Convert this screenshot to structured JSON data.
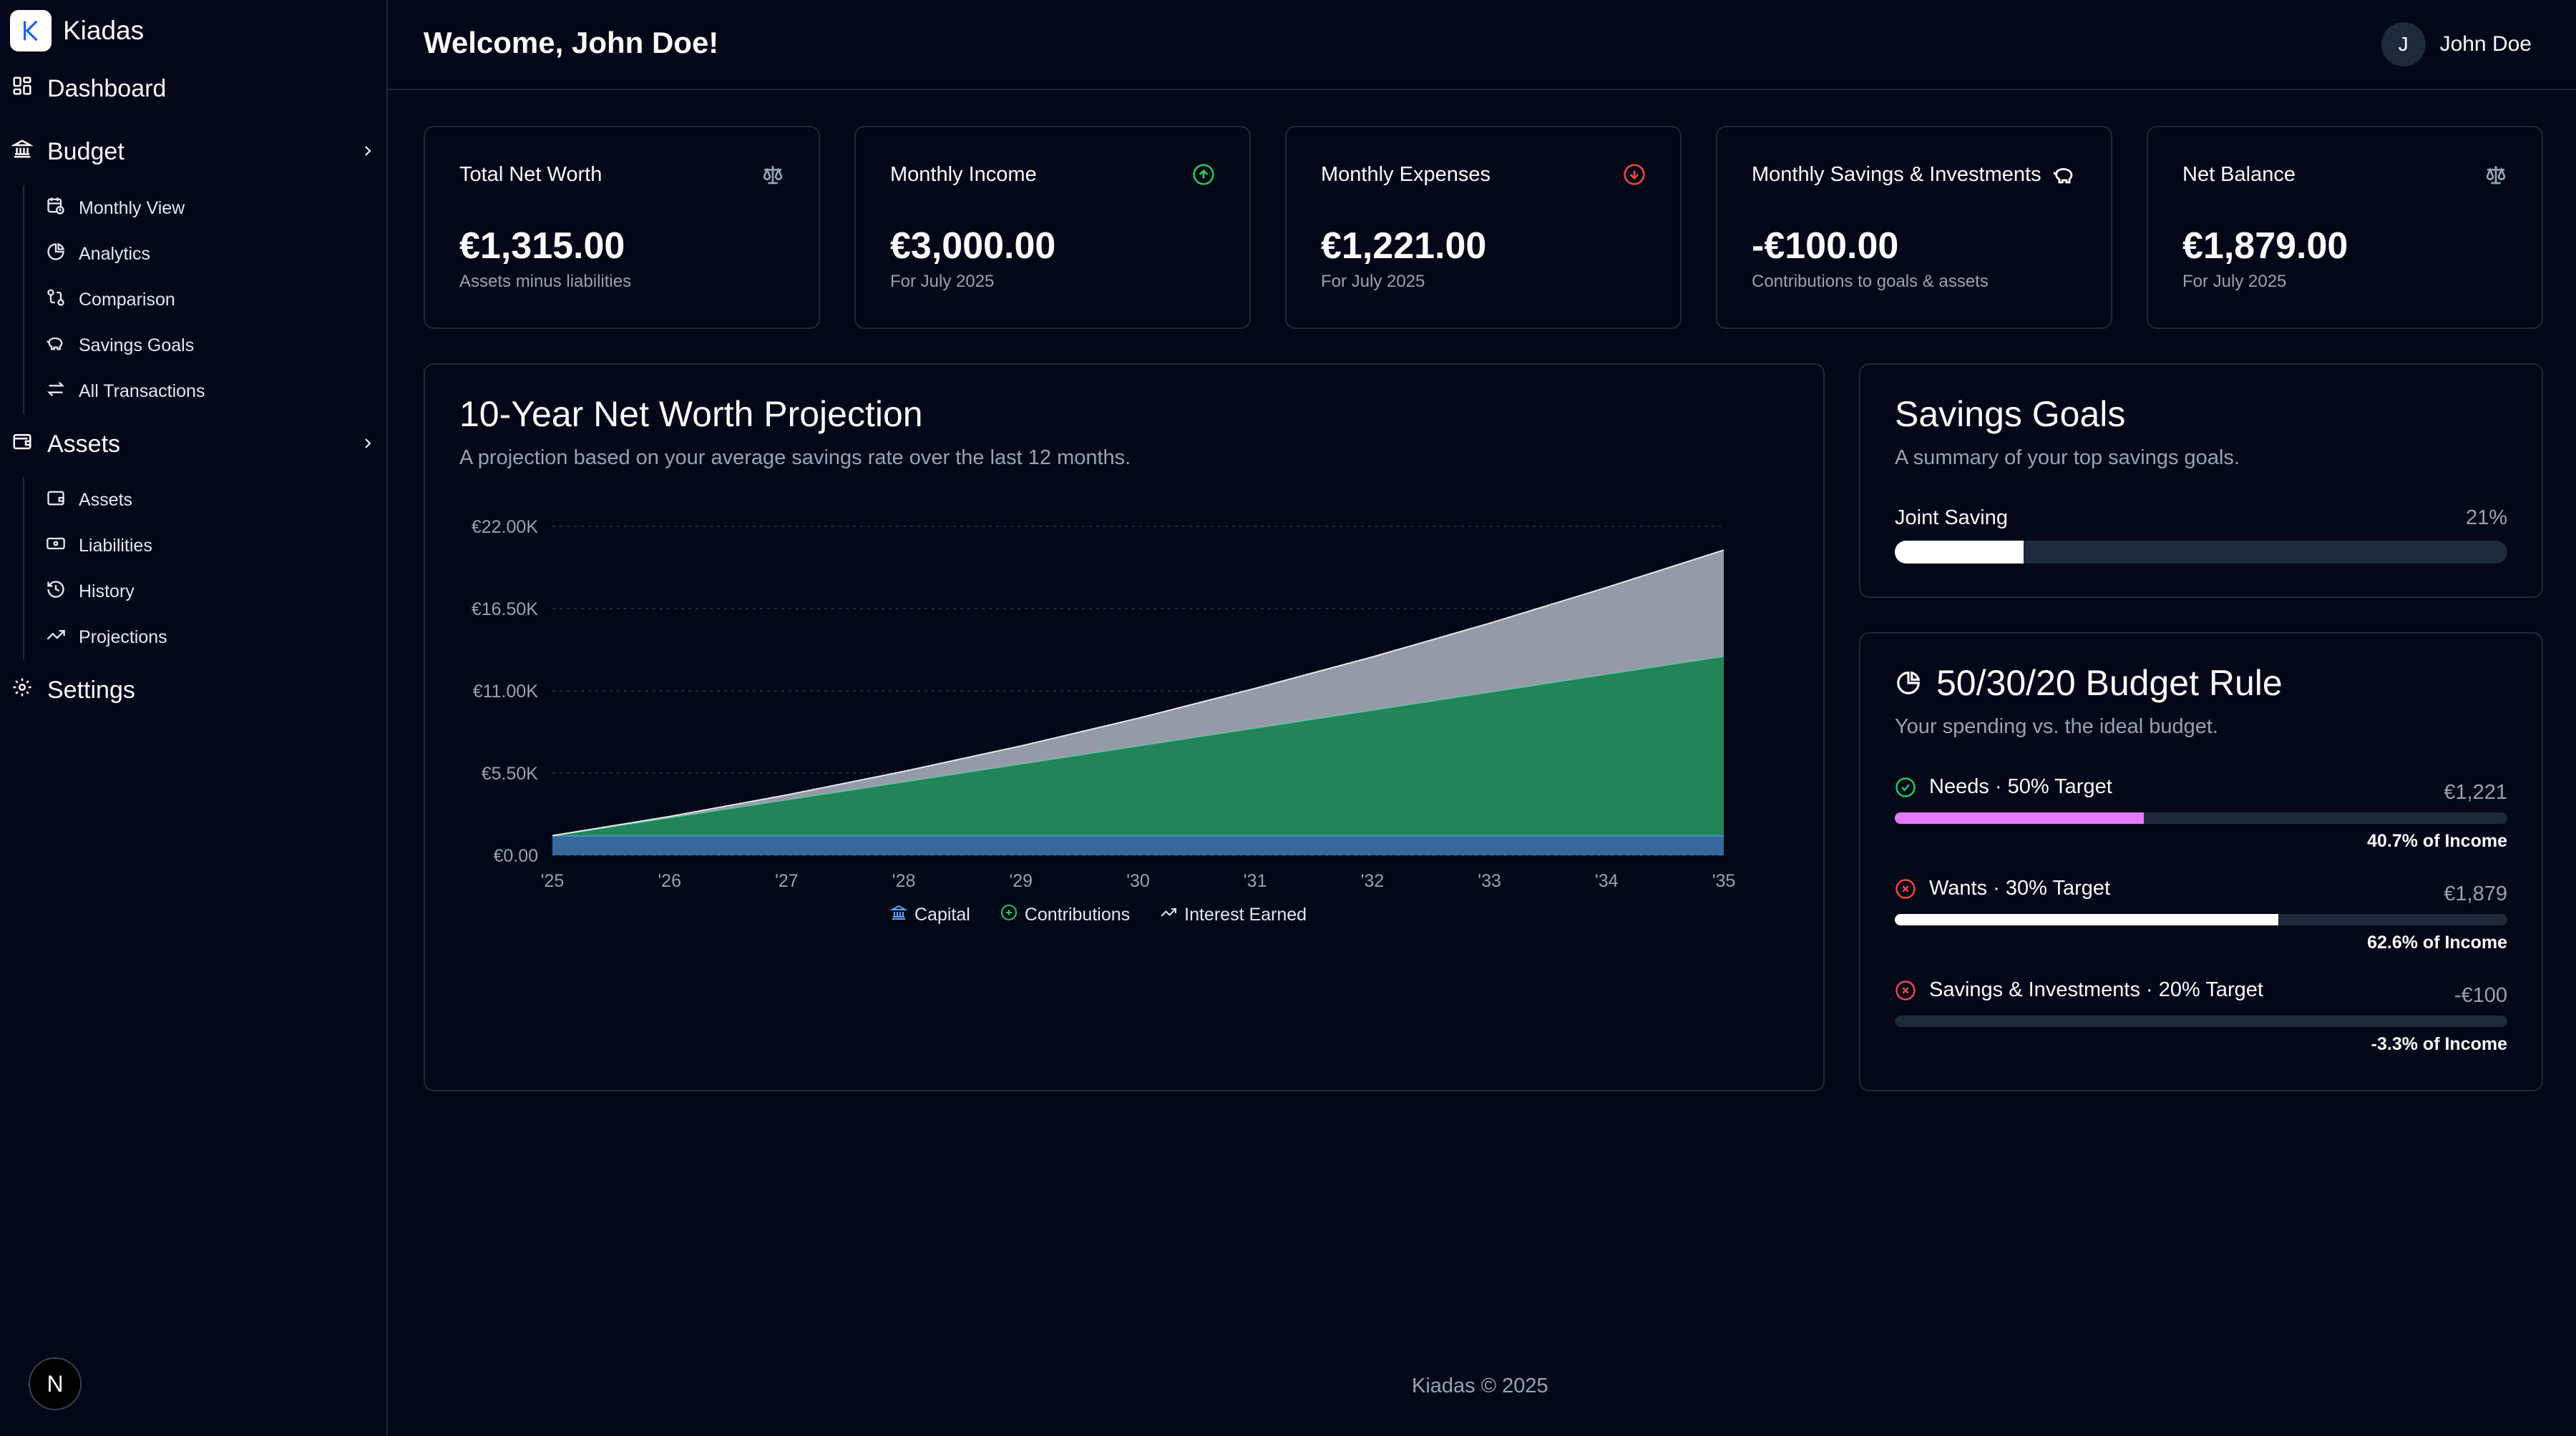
{
  "app": {
    "name": "Kiadas"
  },
  "sidebar": {
    "dashboard": "Dashboard",
    "budget": {
      "label": "Budget",
      "items": [
        {
          "label": "Monthly View",
          "icon": "calendar-clock-icon"
        },
        {
          "label": "Analytics",
          "icon": "pie-chart-icon"
        },
        {
          "label": "Comparison",
          "icon": "git-compare-icon"
        },
        {
          "label": "Savings Goals",
          "icon": "piggy-bank-icon"
        },
        {
          "label": "All Transactions",
          "icon": "arrow-left-right-icon"
        }
      ]
    },
    "assets": {
      "label": "Assets",
      "items": [
        {
          "label": "Assets",
          "icon": "wallet-icon"
        },
        {
          "label": "Liabilities",
          "icon": "banknote-icon"
        },
        {
          "label": "History",
          "icon": "history-icon"
        },
        {
          "label": "Projections",
          "icon": "trending-up-icon"
        }
      ]
    },
    "settings": "Settings",
    "badge_letter": "N"
  },
  "header": {
    "welcome": "Welcome, John Doe!",
    "user": {
      "initial": "J",
      "name": "John Doe"
    }
  },
  "stats": [
    {
      "title": "Total Net Worth",
      "value": "€1,315.00",
      "sub": "Assets minus liabilities",
      "icon": "scale-icon",
      "icon_color": "#94a3b8"
    },
    {
      "title": "Monthly Income",
      "value": "€3,000.00",
      "sub": "For July 2025",
      "icon": "arrow-up-circle-icon",
      "icon_color": "#22c55e"
    },
    {
      "title": "Monthly Expenses",
      "value": "€1,221.00",
      "sub": "For July 2025",
      "icon": "arrow-down-circle-icon",
      "icon_color": "#ef4444"
    },
    {
      "title": "Monthly Savings & Investments",
      "value": "-€100.00",
      "sub": "Contributions to goals & assets",
      "icon": "piggy-bank-icon",
      "icon_color": "#f8fafc"
    },
    {
      "title": "Net Balance",
      "value": "€1,879.00",
      "sub": "For July 2025",
      "icon": "scale-icon",
      "icon_color": "#94a3b8"
    }
  ],
  "projection": {
    "title": "10-Year Net Worth Projection",
    "description": "A projection based on your average savings rate over the last 12 months."
  },
  "chart_data": {
    "type": "area",
    "stacked": true,
    "x": [
      "'25",
      "'26",
      "'27",
      "'28",
      "'29",
      "'30",
      "'31",
      "'32",
      "'33",
      "'34",
      "'35"
    ],
    "ylim": [
      0,
      22000
    ],
    "yticks": [
      "€0.00",
      "€5.50K",
      "€11.00K",
      "€16.50K",
      "€22.00K"
    ],
    "ytick_values": [
      0,
      5500,
      11000,
      16500,
      22000
    ],
    "grid": true,
    "legend_position": "bottom",
    "series": [
      {
        "name": "Capital",
        "color": "#3b82f6",
        "values": [
          1315,
          1315,
          1315,
          1315,
          1315,
          1315,
          1315,
          1315,
          1315,
          1315,
          1315
        ]
      },
      {
        "name": "Contributions",
        "color": "#22c55e",
        "values": [
          0,
          1200,
          2400,
          3600,
          4800,
          6000,
          7200,
          8400,
          9600,
          10800,
          12000
        ]
      },
      {
        "name": "Interest Earned",
        "color": "#cbd5e1",
        "values": [
          0,
          80,
          320,
          700,
          1200,
          1850,
          2650,
          3550,
          4600,
          5800,
          7100
        ]
      }
    ]
  },
  "savings_goals": {
    "title": "Savings Goals",
    "description": "A summary of your top savings goals.",
    "goals": [
      {
        "name": "Joint Saving",
        "percent_label": "21%",
        "progress": 0.21
      }
    ]
  },
  "budget_rule": {
    "title": "50/30/20 Budget Rule",
    "description": "Your spending vs. the ideal budget.",
    "rows": [
      {
        "label": "Needs · 50% Target",
        "amount": "€1,221",
        "pct_label": "40.7% of Income",
        "progress": 0.407,
        "status": "check-circle-icon",
        "status_color": "#22c55e",
        "bar_color": "#e879f9"
      },
      {
        "label": "Wants · 30% Target",
        "amount": "€1,879",
        "pct_label": "62.6% of Income",
        "progress": 0.626,
        "status": "x-circle-icon",
        "status_color": "#ef4444",
        "bar_color": "#ffffff"
      },
      {
        "label": "Savings & Investments · 20% Target",
        "amount": "-€100",
        "pct_label": "-3.3% of Income",
        "progress": 0,
        "status": "x-circle-icon",
        "status_color": "#ef4444",
        "bar_color": "#ffffff"
      }
    ]
  },
  "footer": "Kiadas © 2025"
}
